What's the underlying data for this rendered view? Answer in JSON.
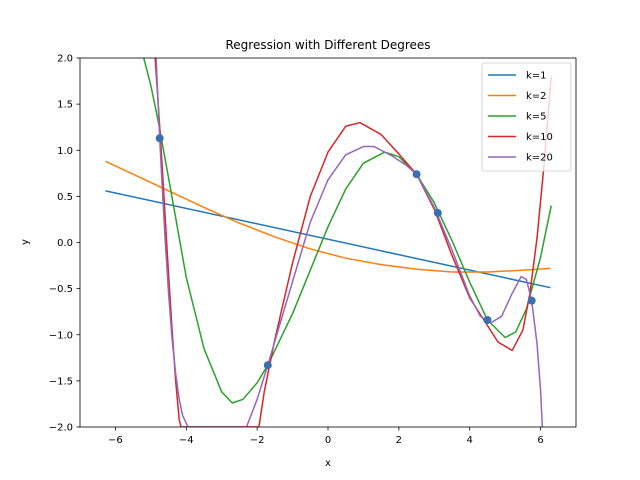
{
  "chart_data": {
    "type": "line",
    "title": "Regression with Different Degrees",
    "xlabel": "x",
    "ylabel": "y",
    "xlim": [
      -7.0,
      7.0
    ],
    "ylim": [
      -2.0,
      2.0
    ],
    "xticks": [
      -6,
      -4,
      -2,
      0,
      2,
      4,
      6
    ],
    "xtick_labels": [
      "−6",
      "−4",
      "−2",
      "0",
      "2",
      "4",
      "6"
    ],
    "yticks": [
      -2.0,
      -1.5,
      -1.0,
      -0.5,
      0.0,
      0.5,
      1.0,
      1.5,
      2.0
    ],
    "ytick_labels": [
      "−2.0",
      "−1.5",
      "−1.0",
      "−0.5",
      "0.0",
      "0.5",
      "1.0",
      "1.5",
      "2.0"
    ],
    "grid": false,
    "legend_position": "top-right",
    "points": {
      "x": [
        -4.75,
        -1.7,
        2.5,
        3.1,
        4.5,
        5.75
      ],
      "y": [
        1.13,
        -1.33,
        0.74,
        0.32,
        -0.84,
        -0.63
      ],
      "color": "#3a6fb0"
    },
    "series": [
      {
        "name": "k=1",
        "color": "#1f77b4",
        "x": [
          -6.28,
          6.28
        ],
        "y": [
          0.56,
          -0.49
        ]
      },
      {
        "name": "k=2",
        "color": "#ff7f0e",
        "x": [
          -6.28,
          -5.5,
          -4.5,
          -3.5,
          -2.5,
          -1.5,
          -0.5,
          0.5,
          1.5,
          2.5,
          3.5,
          4.5,
          5.5,
          6.28
        ],
        "y": [
          0.88,
          0.74,
          0.56,
          0.38,
          0.21,
          0.06,
          -0.07,
          -0.17,
          -0.24,
          -0.29,
          -0.32,
          -0.32,
          -0.3,
          -0.28
        ]
      },
      {
        "name": "k=5",
        "color": "#2ca02c",
        "x": [
          -5.2,
          -5.0,
          -4.8,
          -4.5,
          -4.0,
          -3.5,
          -3.0,
          -2.7,
          -2.4,
          -2.0,
          -1.7,
          -1.0,
          0.0,
          0.5,
          1.0,
          1.6,
          2.0,
          2.5,
          3.0,
          3.5,
          4.0,
          4.5,
          5.0,
          5.3,
          5.6,
          6.0,
          6.3
        ],
        "y": [
          2.0,
          1.7,
          1.33,
          0.7,
          -0.38,
          -1.15,
          -1.62,
          -1.74,
          -1.7,
          -1.52,
          -1.33,
          -0.77,
          0.17,
          0.58,
          0.86,
          0.98,
          0.93,
          0.74,
          0.43,
          0.02,
          -0.43,
          -0.84,
          -1.03,
          -0.97,
          -0.72,
          -0.16,
          0.4
        ]
      },
      {
        "name": "k=10",
        "color": "#d62728",
        "x": [
          -4.88,
          -4.8,
          -4.7,
          -4.6,
          -4.5,
          -4.4,
          -4.3,
          -4.2,
          -4.15,
          -1.95,
          -1.8,
          -1.5,
          -1.0,
          -0.5,
          0.0,
          0.5,
          0.9,
          1.5,
          2.0,
          2.5,
          3.0,
          3.5,
          4.0,
          4.5,
          4.8,
          5.2,
          5.5,
          5.7,
          5.9,
          6.1,
          6.3
        ],
        "y": [
          2.0,
          1.55,
          0.95,
          0.3,
          -0.35,
          -0.95,
          -1.5,
          -1.92,
          -2.0,
          -2.0,
          -1.62,
          -1.05,
          -0.22,
          0.5,
          0.98,
          1.26,
          1.3,
          1.17,
          0.96,
          0.74,
          0.36,
          -0.14,
          -0.6,
          -0.9,
          -1.08,
          -1.17,
          -0.95,
          -0.55,
          0.05,
          0.85,
          1.8
        ]
      },
      {
        "name": "k=20",
        "color": "#9467bd",
        "x": [
          -4.85,
          -4.8,
          -4.75,
          -4.7,
          -4.6,
          -4.5,
          -4.4,
          -4.3,
          -4.2,
          -4.1,
          -3.95,
          -2.3,
          -2.0,
          -1.7,
          -1.2,
          -0.5,
          0.0,
          0.5,
          1.0,
          1.3,
          1.8,
          2.2,
          2.5,
          3.0,
          3.5,
          4.0,
          4.3,
          4.6,
          4.9,
          5.2,
          5.45,
          5.6,
          5.75,
          5.9,
          6.0,
          6.05
        ],
        "y": [
          2.0,
          1.55,
          1.13,
          0.75,
          0.05,
          -0.55,
          -1.05,
          -1.42,
          -1.7,
          -1.88,
          -2.0,
          -2.0,
          -1.7,
          -1.33,
          -0.68,
          0.22,
          0.68,
          0.95,
          1.04,
          1.04,
          0.94,
          0.84,
          0.74,
          0.38,
          -0.08,
          -0.58,
          -0.8,
          -0.87,
          -0.8,
          -0.55,
          -0.37,
          -0.4,
          -0.63,
          -1.1,
          -1.6,
          -2.0
        ]
      }
    ]
  }
}
